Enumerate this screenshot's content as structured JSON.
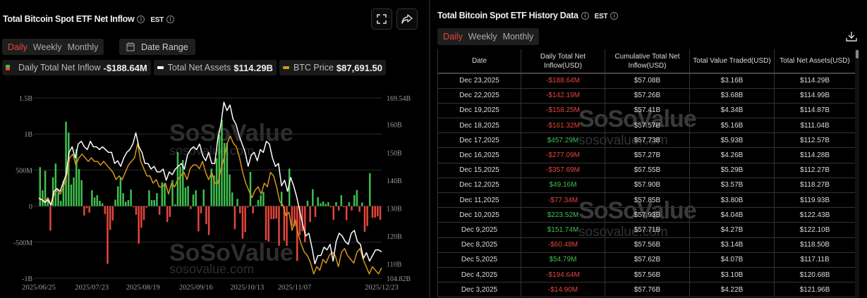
{
  "left": {
    "title": "Total Bitcoin Spot ETF Net Inflow",
    "tz": "EST",
    "periods": [
      "Daily",
      "Weekly",
      "Monthly"
    ],
    "active_period": "Daily",
    "date_range": "Date Range",
    "legend": [
      {
        "label": "Daily Total Net Inflow",
        "value": "-$188.64M"
      },
      {
        "label": "Total Net Assets",
        "value": "$114.29B"
      },
      {
        "label": "BTC Price",
        "value": "$87,691.50"
      }
    ],
    "watermark": "SoSoValue",
    "watermark_url": "sosovalue.com"
  },
  "right": {
    "title": "Total Bitcoin Spot ETF History Data",
    "tz": "EST",
    "periods": [
      "Daily",
      "Weekly",
      "Monthly"
    ],
    "active_period": "Daily",
    "columns": [
      "Date",
      "Daily Total Net Inflow(USD)",
      "Cumulative Total Net Inflow(USD)",
      "Total Value Traded(USD)",
      "Total Net Assets(USD)"
    ],
    "rows": [
      [
        "Dec 23,2025",
        "-$188.64M",
        "$57.08B",
        "$3.16B",
        "$114.29B"
      ],
      [
        "Dec 22,2025",
        "-$142.19M",
        "$57.26B",
        "$3.68B",
        "$114.99B"
      ],
      [
        "Dec 19,2025",
        "-$158.25M",
        "$57.41B",
        "$4.34B",
        "$114.87B"
      ],
      [
        "Dec 18,2025",
        "-$161.32M",
        "$57.57B",
        "$5.16B",
        "$111.04B"
      ],
      [
        "Dec 17,2025",
        "$457.29M",
        "$57.73B",
        "$5.93B",
        "$112.57B"
      ],
      [
        "Dec 16,2025",
        "-$277.09M",
        "$57.27B",
        "$4.26B",
        "$114.28B"
      ],
      [
        "Dec 15,2025",
        "-$357.69M",
        "$57.55B",
        "$5.29B",
        "$112.27B"
      ],
      [
        "Dec 12,2025",
        "$49.16M",
        "$57.90B",
        "$3.57B",
        "$118.27B"
      ],
      [
        "Dec 11,2025",
        "-$77.34M",
        "$57.85B",
        "$3.80B",
        "$119.93B"
      ],
      [
        "Dec 10,2025",
        "$223.52M",
        "$57.93B",
        "$4.04B",
        "$122.43B"
      ],
      [
        "Dec 9,2025",
        "$151.74M",
        "$57.71B",
        "$4.27B",
        "$122.10B"
      ],
      [
        "Dec 8,2025",
        "-$60.48M",
        "$57.56B",
        "$3.14B",
        "$118.50B"
      ],
      [
        "Dec 5,2025",
        "$54.79M",
        "$57.62B",
        "$4.07B",
        "$117.11B"
      ],
      [
        "Dec 4,2025",
        "-$194.64M",
        "$57.56B",
        "$3.10B",
        "$120.68B"
      ],
      [
        "Dec 3,2025",
        "-$14.90M",
        "$57.76B",
        "$4.22B",
        "$121.96B"
      ]
    ]
  },
  "colors": {
    "positive": "#3fbf4f",
    "negative": "#e4463c",
    "assets": "#ffffff",
    "btc": "#d4961a",
    "active": "#e4463c"
  },
  "chart_data": {
    "type": "bar+line",
    "x_start": "2025/06/25",
    "x_end": "2025/12/23",
    "x_ticks": [
      "2025/06/25",
      "2025/07/23",
      "2025/08/19",
      "2025/09/16",
      "2025/10/13",
      "2025/11/07",
      "2025/12/23"
    ],
    "y_left_ticks": [
      "1.5B",
      "1B",
      "500M",
      "0",
      "-500M",
      "-1B"
    ],
    "y_left_range_musd": [
      -1000,
      1500
    ],
    "y_right_ticks": [
      "169.54B",
      "160B",
      "150B",
      "140B",
      "130B",
      "120B",
      "110B",
      "104.82B"
    ],
    "y_right_range_busd": [
      104.82,
      169.54
    ],
    "grid": true,
    "series": [
      {
        "name": "Daily Total Net Inflow",
        "type": "bar",
        "unit": "M USD",
        "values": [
          540,
          220,
          490,
          120,
          -340,
          400,
          590,
          190,
          75,
          350,
          1170,
          1020,
          300,
          400,
          790,
          515,
          360,
          -130,
          -30,
          -90,
          220,
          120,
          150,
          75,
          40,
          -110,
          -800,
          -330,
          -200,
          90,
          275,
          400,
          180,
          60,
          85,
          230,
          -15,
          -120,
          -520,
          -300,
          -190,
          -20,
          220,
          85,
          85,
          180,
          -120,
          330,
          320,
          -220,
          -150,
          360,
          25,
          750,
          550,
          640,
          260,
          280,
          -40,
          160,
          220,
          -350,
          -100,
          230,
          -250,
          -400,
          520,
          425,
          665,
          985,
          1195,
          875,
          875,
          440,
          190,
          -320,
          100,
          -100,
          -450,
          -360,
          -20,
          475,
          -100,
          10,
          85,
          150,
          200,
          -470,
          -490,
          -180,
          -180,
          -170,
          -550,
          200,
          -480,
          -550,
          520,
          -270,
          -280,
          -760,
          -400,
          -350,
          -500,
          75,
          -220,
          235,
          -150,
          125,
          40,
          65,
          30,
          55,
          -15,
          -190,
          55,
          -60,
          150,
          -14.9,
          -194.64,
          54.79,
          -60.48,
          151.74,
          223.52,
          -77.34,
          49.16,
          -357.69,
          -277.09,
          457.29,
          -161.32,
          -158.25,
          -142.19,
          -188.64
        ]
      },
      {
        "name": "Total Net Assets",
        "type": "line",
        "unit": "B USD",
        "values": [
          133.5,
          133,
          132,
          133,
          131,
          136,
          137,
          136,
          139,
          142,
          150,
          152,
          148,
          153,
          154,
          152,
          151,
          154,
          152,
          152,
          151,
          152,
          151,
          150,
          150,
          146,
          147,
          145,
          148,
          150,
          151,
          153,
          157,
          152,
          150,
          146,
          146,
          144,
          145,
          143,
          143,
          144,
          140,
          143,
          142,
          144,
          145,
          146,
          144,
          149,
          151,
          152,
          151,
          153,
          149,
          147,
          150,
          146,
          146,
          155,
          160,
          168,
          165,
          167,
          162,
          160,
          156,
          153,
          150,
          145,
          149,
          150,
          147,
          151,
          150,
          154,
          153,
          148,
          145,
          146,
          138,
          140,
          136,
          141,
          138,
          134,
          129,
          124,
          120,
          121,
          116,
          110,
          113,
          113,
          116,
          115,
          117,
          111,
          118,
          121,
          120,
          118,
          117,
          121,
          122,
          118,
          117,
          112,
          114,
          111,
          113,
          115,
          115,
          114.29
        ]
      },
      {
        "name": "BTC Price",
        "type": "line",
        "unit": "K USD",
        "range_k": [
          84.8,
          134.5
        ],
        "values": [
          107,
          106.5,
          106,
          107,
          105,
          108,
          109,
          108,
          110,
          113,
          118,
          119,
          116,
          118,
          119,
          118,
          117,
          118,
          117,
          117,
          116,
          117,
          116,
          115,
          114,
          112,
          113,
          112,
          114,
          116,
          117,
          118,
          122,
          117,
          115,
          113,
          113,
          111,
          112,
          110,
          110,
          111,
          108,
          111,
          110,
          112,
          113,
          114,
          112,
          115,
          116,
          116,
          115,
          117,
          114,
          112,
          114,
          111,
          111,
          115,
          118,
          122,
          124,
          122,
          121,
          118,
          114,
          111,
          109,
          107,
          109,
          110,
          108,
          111,
          110,
          114,
          113,
          110,
          106,
          105,
          102,
          103,
          98,
          101,
          97,
          94,
          92,
          91,
          89,
          86,
          88,
          87,
          90,
          89,
          91,
          92,
          91,
          88,
          92,
          93,
          91,
          90,
          89,
          92,
          93,
          90,
          88,
          86,
          88,
          87,
          86,
          87.69
        ]
      }
    ]
  }
}
